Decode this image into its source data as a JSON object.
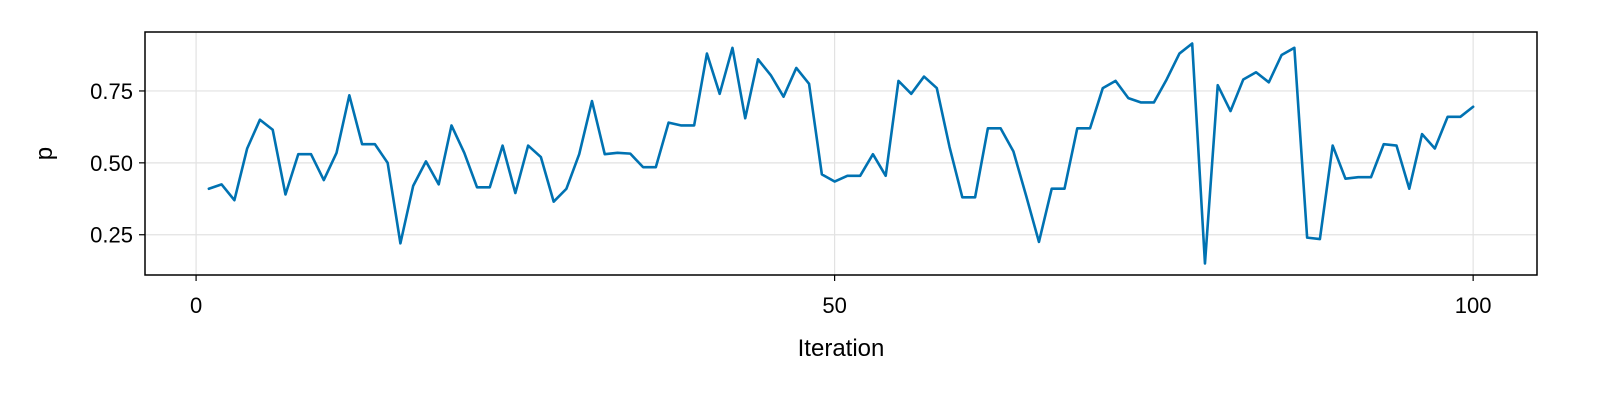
{
  "chart_data": {
    "type": "line",
    "xlabel": "Iteration",
    "ylabel": "p",
    "xlim": [
      -4,
      105
    ],
    "ylim": [
      0.11,
      0.955
    ],
    "x_ticks": [
      {
        "value": 0,
        "label": "0"
      },
      {
        "value": 50,
        "label": "50"
      },
      {
        "value": 100,
        "label": "100"
      }
    ],
    "y_ticks": [
      {
        "value": 0.25,
        "label": "0.25"
      },
      {
        "value": 0.5,
        "label": "0.50"
      },
      {
        "value": 0.75,
        "label": "0.75"
      }
    ],
    "grid": true,
    "legend": "none",
    "colors": {
      "line": "#0072b2",
      "grid": "#e2e2e2",
      "frame": "#000000"
    },
    "series": [
      {
        "x": [
          1,
          2,
          3,
          4,
          5,
          6,
          7,
          8,
          9,
          10,
          11,
          12,
          13,
          14,
          15,
          16,
          17,
          18,
          19,
          20,
          21,
          22,
          23,
          24,
          25,
          26,
          27,
          28,
          29,
          30,
          31,
          32,
          33,
          34,
          35,
          36,
          37,
          38,
          39,
          40,
          41,
          42,
          43,
          44,
          45,
          46,
          47,
          48,
          49,
          50,
          51,
          52,
          53,
          54,
          55,
          56,
          57,
          58,
          59,
          60,
          61,
          62,
          63,
          64,
          65,
          66,
          67,
          68,
          69,
          70,
          71,
          72,
          73,
          74,
          75,
          76,
          77,
          78,
          79,
          80,
          81,
          82,
          83,
          84,
          85,
          86,
          87,
          88,
          89,
          90,
          91,
          92,
          93,
          94,
          95,
          96,
          97,
          98,
          99,
          100
        ],
        "y": [
          0.41,
          0.425,
          0.37,
          0.55,
          0.65,
          0.615,
          0.39,
          0.53,
          0.53,
          0.44,
          0.535,
          0.735,
          0.565,
          0.565,
          0.5,
          0.22,
          0.42,
          0.505,
          0.425,
          0.63,
          0.535,
          0.415,
          0.415,
          0.56,
          0.395,
          0.56,
          0.52,
          0.365,
          0.41,
          0.53,
          0.715,
          0.53,
          0.535,
          0.532,
          0.485,
          0.485,
          0.64,
          0.63,
          0.63,
          0.88,
          0.74,
          0.9,
          0.655,
          0.86,
          0.805,
          0.73,
          0.83,
          0.775,
          0.46,
          0.435,
          0.455,
          0.455,
          0.53,
          0.455,
          0.785,
          0.74,
          0.8,
          0.76,
          0.555,
          0.38,
          0.38,
          0.62,
          0.62,
          0.54,
          0.385,
          0.225,
          0.41,
          0.41,
          0.62,
          0.62,
          0.76,
          0.785,
          0.725,
          0.71,
          0.71,
          0.79,
          0.88,
          0.915,
          0.15,
          0.77,
          0.68,
          0.79,
          0.815,
          0.78,
          0.875,
          0.9,
          0.24,
          0.235,
          0.56,
          0.445,
          0.45,
          0.45,
          0.565,
          0.56,
          0.41,
          0.6,
          0.55,
          0.66,
          0.66,
          0.695
        ]
      }
    ]
  }
}
